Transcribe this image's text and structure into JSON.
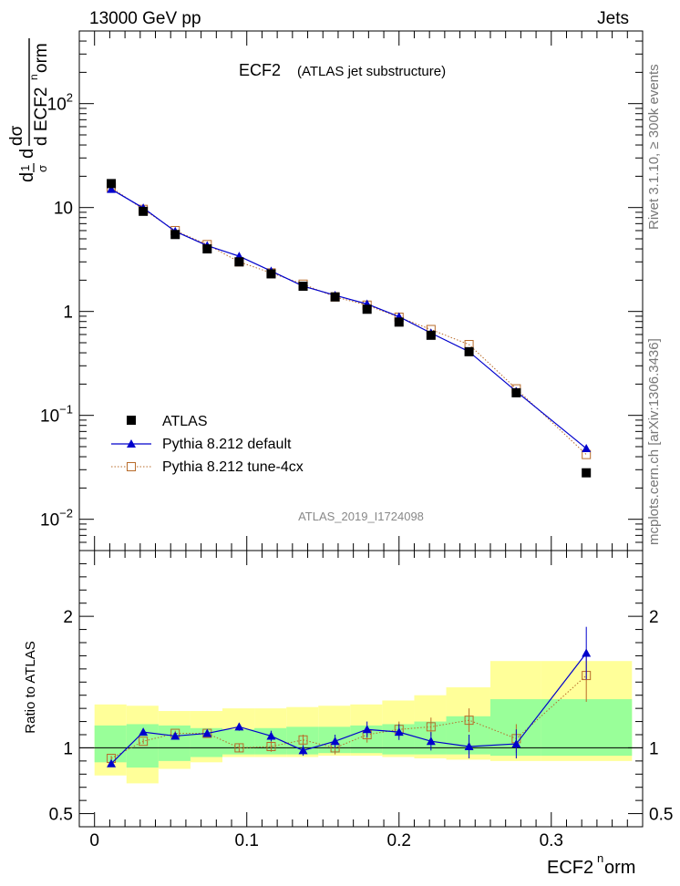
{
  "header": {
    "left": "13000 GeV pp",
    "right": "Jets"
  },
  "side_labels": {
    "rivet": "Rivet 3.1.10, ≥ 300k events",
    "mcplots": "mcplots.cern.ch [arXiv:1306.3436]"
  },
  "chart_data": [
    {
      "type": "scatter",
      "panel": "main",
      "title": "ECF2",
      "subtitle": "(ATLAS jet substructure)",
      "watermark": "ATLAS_2019_I1724098",
      "ylabel": "dσ/σ d ECF2norm",
      "yscale": "log",
      "xlim": [
        -0.01,
        0.36
      ],
      "ylim": [
        0.005,
        500
      ],
      "yticks": [
        {
          "value": 0.01,
          "base": "10",
          "exp": "−2"
        },
        {
          "value": 0.1,
          "base": "10",
          "exp": "−1"
        },
        {
          "value": 1,
          "base": "1",
          "exp": ""
        },
        {
          "value": 10,
          "base": "10",
          "exp": ""
        },
        {
          "value": 100,
          "base": "10",
          "exp": "2"
        }
      ],
      "x": [
        0.011,
        0.032,
        0.053,
        0.074,
        0.095,
        0.116,
        0.137,
        0.158,
        0.179,
        0.2,
        0.221,
        0.246,
        0.277,
        0.323
      ],
      "series": [
        {
          "name": "ATLAS",
          "color": "#000000",
          "marker": "square-filled",
          "values": [
            17.0,
            9.2,
            5.5,
            4.0,
            3.0,
            2.3,
            1.75,
            1.38,
            1.05,
            0.79,
            0.59,
            0.41,
            0.165,
            0.028
          ]
        },
        {
          "name": "Pythia 8.212 default",
          "color": "#0000cc",
          "marker": "triangle",
          "line": "solid",
          "values": [
            15.0,
            9.9,
            5.9,
            4.3,
            3.4,
            2.45,
            1.75,
            1.43,
            1.18,
            0.89,
            0.62,
            0.41,
            0.17,
            0.048
          ]
        },
        {
          "name": "Pythia 8.212 tune-4cx",
          "color": "#b86b2a",
          "marker": "square-open",
          "line": "dotted",
          "values": [
            15.6,
            9.6,
            6.0,
            4.4,
            3.0,
            2.35,
            1.83,
            1.38,
            1.15,
            0.88,
            0.67,
            0.48,
            0.18,
            0.042
          ]
        }
      ]
    },
    {
      "type": "scatter",
      "panel": "ratio",
      "ylabel": "Ratio to ATLAS",
      "xlabel": "ECF2norm",
      "ylim": [
        0.4,
        2.5
      ],
      "yticks": [
        0.5,
        1,
        2
      ],
      "xticks": [
        "0",
        "0.1",
        "0.2",
        "0.3"
      ],
      "bin_edges": [
        0.0,
        0.021,
        0.042,
        0.063,
        0.084,
        0.105,
        0.126,
        0.147,
        0.168,
        0.189,
        0.21,
        0.231,
        0.26,
        0.293,
        0.353
      ],
      "band_stat_lo": [
        0.89,
        0.85,
        0.9,
        0.93,
        0.95,
        0.95,
        0.95,
        0.96,
        0.96,
        0.95,
        0.95,
        0.95,
        0.94,
        0.94
      ],
      "band_stat_hi": [
        1.17,
        1.18,
        1.17,
        1.15,
        1.14,
        1.15,
        1.16,
        1.16,
        1.17,
        1.18,
        1.2,
        1.24,
        1.37,
        1.37
      ],
      "band_syst_lo": [
        0.79,
        0.73,
        0.84,
        0.89,
        0.93,
        0.93,
        0.93,
        0.94,
        0.94,
        0.93,
        0.92,
        0.91,
        0.9,
        0.9
      ],
      "band_syst_hi": [
        1.33,
        1.32,
        1.28,
        1.28,
        1.3,
        1.3,
        1.31,
        1.32,
        1.33,
        1.36,
        1.4,
        1.46,
        1.66,
        1.66
      ],
      "x": [
        0.011,
        0.032,
        0.053,
        0.074,
        0.095,
        0.116,
        0.137,
        0.158,
        0.179,
        0.2,
        0.221,
        0.246,
        0.277,
        0.323
      ],
      "series": [
        {
          "name": "Pythia 8.212 default",
          "color": "#0000cc",
          "marker": "triangle",
          "line": "solid",
          "values": [
            0.88,
            1.12,
            1.09,
            1.11,
            1.16,
            1.09,
            0.98,
            1.05,
            1.14,
            1.12,
            1.05,
            1.01,
            1.03,
            1.72
          ],
          "errors": [
            0.02,
            0.02,
            0.02,
            0.02,
            0.03,
            0.04,
            0.04,
            0.05,
            0.06,
            0.06,
            0.07,
            0.09,
            0.11,
            0.2
          ]
        },
        {
          "name": "Pythia 8.212 tune-4cx",
          "color": "#b86b2a",
          "marker": "square-open",
          "line": "dotted",
          "values": [
            0.92,
            1.05,
            1.11,
            1.11,
            1.0,
            1.01,
            1.06,
            1.0,
            1.1,
            1.14,
            1.16,
            1.21,
            1.07,
            1.55
          ],
          "errors": [
            0.02,
            0.02,
            0.02,
            0.02,
            0.03,
            0.04,
            0.04,
            0.05,
            0.06,
            0.06,
            0.07,
            0.09,
            0.11,
            0.2
          ]
        }
      ]
    }
  ]
}
